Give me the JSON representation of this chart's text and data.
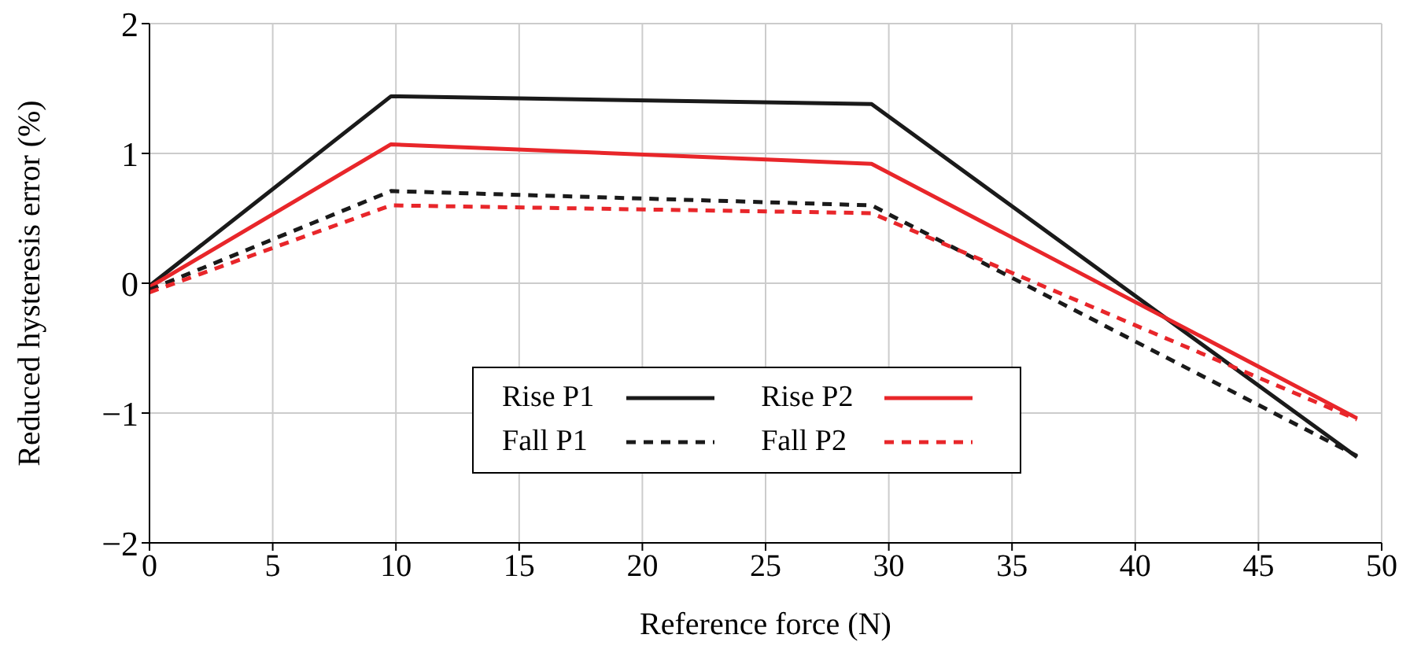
{
  "chart_data": {
    "type": "line",
    "xlabel": "Reference force (N)",
    "ylabel": "Reduced hysteresis error (%)",
    "x": [
      0,
      9.8,
      29.3,
      49
    ],
    "series": [
      {
        "name": "Rise P1",
        "color": "#1a1a1a",
        "line_style": "solid",
        "values": [
          -0.02,
          1.44,
          1.38,
          -1.34
        ]
      },
      {
        "name": "Rise P2",
        "color": "#e8262a",
        "line_style": "solid",
        "values": [
          -0.03,
          1.07,
          0.92,
          -1.04
        ]
      },
      {
        "name": "Fall P1",
        "color": "#1a1a1a",
        "line_style": "dashed",
        "values": [
          -0.05,
          0.71,
          0.6,
          -1.33
        ]
      },
      {
        "name": "Fall P2",
        "color": "#e8262a",
        "line_style": "dashed",
        "values": [
          -0.07,
          0.6,
          0.54,
          -1.05
        ]
      }
    ],
    "xlim": [
      0,
      50
    ],
    "xticks": [
      0,
      5,
      10,
      15,
      20,
      25,
      30,
      35,
      40,
      45,
      50
    ],
    "ylim": [
      -2,
      2
    ],
    "yticks": [
      {
        "value": -2,
        "label": "−2"
      },
      {
        "value": -1,
        "label": "−1"
      },
      0,
      1,
      2
    ],
    "grid": true,
    "legend": "bottom"
  }
}
